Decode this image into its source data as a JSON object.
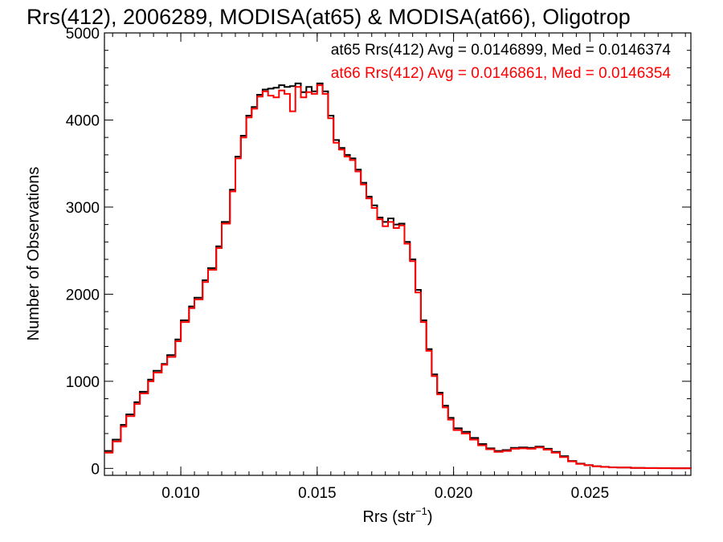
{
  "chart_data": {
    "type": "line",
    "title": "Rrs(412), 2006289, MODISA(at65) & MODISA(at66), Oligotrop",
    "xlabel_main": "Rrs (str",
    "xlabel_sup": "−1",
    "xlabel_close": ")",
    "ylabel": "Number of Observations",
    "xlim": [
      0.0072,
      0.0287
    ],
    "ylim": [
      -80,
      5000
    ],
    "x_ticks": [
      0.01,
      0.015,
      0.02,
      0.025
    ],
    "x_tick_labels": [
      "0.010",
      "0.015",
      "0.020",
      "0.025"
    ],
    "y_ticks": [
      0,
      1000,
      2000,
      3000,
      4000,
      5000
    ],
    "y_tick_labels": [
      "0",
      "1000",
      "2000",
      "3000",
      "4000",
      "5000"
    ],
    "annotations": [
      {
        "text": "at65 Rrs(412) Avg = 0.0146899, Med = 0.0146374",
        "color": "#000000"
      },
      {
        "text": "at66 Rrs(412) Avg = 0.0146861, Med = 0.0146354",
        "color": "#ff0000"
      }
    ],
    "series": [
      {
        "name": "at65",
        "color": "#000000",
        "x": [
          0.0072,
          0.0075,
          0.0078,
          0.008,
          0.0083,
          0.0085,
          0.0088,
          0.009,
          0.0093,
          0.0095,
          0.0098,
          0.01,
          0.0103,
          0.0105,
          0.0108,
          0.011,
          0.0113,
          0.0115,
          0.0118,
          0.012,
          0.0122,
          0.0124,
          0.0126,
          0.0128,
          0.013,
          0.0132,
          0.0134,
          0.0136,
          0.0138,
          0.014,
          0.0142,
          0.0144,
          0.0146,
          0.0148,
          0.015,
          0.0152,
          0.0154,
          0.0156,
          0.0158,
          0.016,
          0.0162,
          0.0164,
          0.0166,
          0.0168,
          0.017,
          0.0172,
          0.0174,
          0.0176,
          0.0178,
          0.018,
          0.0182,
          0.0184,
          0.0186,
          0.0188,
          0.019,
          0.0192,
          0.0194,
          0.0196,
          0.0198,
          0.02,
          0.0203,
          0.0206,
          0.0209,
          0.0212,
          0.0215,
          0.0218,
          0.0221,
          0.0224,
          0.0227,
          0.023,
          0.0233,
          0.0236,
          0.0239,
          0.0242,
          0.0245,
          0.0248,
          0.0251,
          0.0254,
          0.0257,
          0.026,
          0.0265,
          0.027,
          0.0275,
          0.028,
          0.0287
        ],
        "values": [
          200,
          330,
          500,
          620,
          760,
          880,
          1020,
          1120,
          1200,
          1300,
          1480,
          1700,
          1860,
          1960,
          2160,
          2300,
          2550,
          2830,
          3200,
          3580,
          3820,
          4050,
          4150,
          4290,
          4350,
          4360,
          4370,
          4400,
          4380,
          4390,
          4420,
          4320,
          4380,
          4330,
          4420,
          4330,
          4050,
          3770,
          3680,
          3600,
          3560,
          3430,
          3280,
          3120,
          3020,
          2880,
          2830,
          2870,
          2800,
          2810,
          2600,
          2400,
          2050,
          1700,
          1370,
          1080,
          870,
          720,
          580,
          460,
          420,
          350,
          280,
          230,
          200,
          210,
          235,
          240,
          235,
          250,
          225,
          190,
          140,
          85,
          55,
          38,
          25,
          18,
          12,
          10,
          6,
          4,
          3,
          2,
          1
        ]
      },
      {
        "name": "at66",
        "color": "#ff0000",
        "x": [
          0.0072,
          0.0075,
          0.0078,
          0.008,
          0.0083,
          0.0085,
          0.0088,
          0.009,
          0.0093,
          0.0095,
          0.0098,
          0.01,
          0.0103,
          0.0105,
          0.0108,
          0.011,
          0.0113,
          0.0115,
          0.0118,
          0.012,
          0.0122,
          0.0124,
          0.0126,
          0.0128,
          0.013,
          0.0132,
          0.0134,
          0.0136,
          0.0138,
          0.014,
          0.0142,
          0.0144,
          0.0146,
          0.0148,
          0.015,
          0.0152,
          0.0154,
          0.0156,
          0.0158,
          0.016,
          0.0162,
          0.0164,
          0.0166,
          0.0168,
          0.017,
          0.0172,
          0.0174,
          0.0176,
          0.0178,
          0.018,
          0.0182,
          0.0184,
          0.0186,
          0.0188,
          0.019,
          0.0192,
          0.0194,
          0.0196,
          0.0198,
          0.02,
          0.0203,
          0.0206,
          0.0209,
          0.0212,
          0.0215,
          0.0218,
          0.0221,
          0.0224,
          0.0227,
          0.023,
          0.0233,
          0.0236,
          0.0239,
          0.0242,
          0.0245,
          0.0248,
          0.0251,
          0.0254,
          0.0257,
          0.026,
          0.0265,
          0.027,
          0.0275,
          0.028,
          0.0287
        ],
        "values": [
          180,
          310,
          480,
          600,
          740,
          860,
          1000,
          1100,
          1190,
          1280,
          1460,
          1680,
          1840,
          1940,
          2140,
          2280,
          2530,
          2810,
          3180,
          3560,
          3800,
          4030,
          4130,
          4270,
          4330,
          4280,
          4260,
          4340,
          4300,
          4100,
          4380,
          4260,
          4320,
          4300,
          4400,
          4300,
          4020,
          3740,
          3660,
          3580,
          3540,
          3410,
          3260,
          3100,
          2990,
          2860,
          2780,
          2830,
          2760,
          2790,
          2580,
          2380,
          2020,
          1680,
          1350,
          1060,
          850,
          700,
          560,
          440,
          400,
          330,
          265,
          220,
          190,
          200,
          225,
          230,
          225,
          240,
          215,
          180,
          130,
          80,
          52,
          36,
          24,
          17,
          11,
          9,
          5,
          3,
          2,
          1,
          0
        ]
      }
    ],
    "grid": false,
    "legend": "top-right annotation text"
  }
}
